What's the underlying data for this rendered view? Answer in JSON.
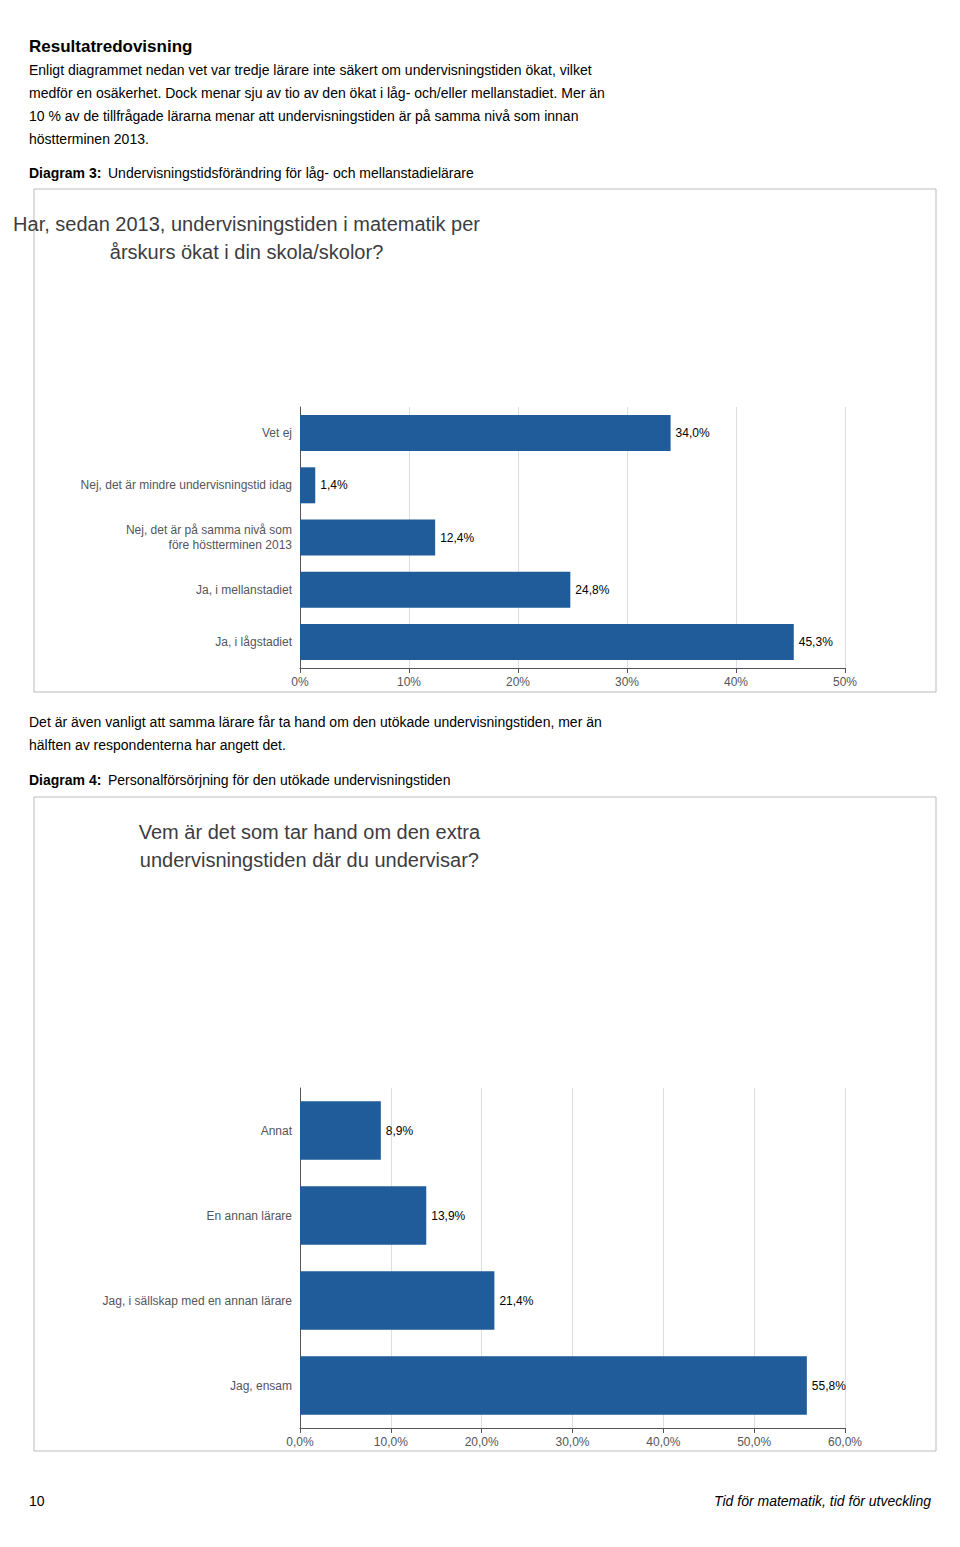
{
  "header": "Resultatredovisning",
  "footer_left": "10",
  "footer_right": "Tid för matematik, tid för utveckling",
  "chart_data": [
    {
      "type": "bar",
      "orientation": "horizontal",
      "intro": [
        "Enligt diagrammet nedan vet var tredje lärare inte säkert om undervisningstiden ökat, vilket",
        "medför en osäkerhet. Dock menar sju av tio av den ökat i låg- och/eller mellanstadiet. Mer än",
        "10 % av de tillfrågade lärarna menar att undervisningstiden är på samma nivå som innan",
        "höstterminen 2013."
      ],
      "label": "Diagram 3:",
      "description": "Undervisningstidsförändring för låg- och mellanstadielärare",
      "title": "Har, sedan 2013, undervisningstiden i matematik per\nårskurs ökat i din skola/skolor?",
      "categories": [
        "Ja, i lågstadiet",
        "Ja, i mellanstadiet",
        "Nej, det är på samma nivå som\nföre höstterminen 2013",
        "Nej, det är mindre undervisningstid idag",
        "Vet ej"
      ],
      "values": [
        45.3,
        24.8,
        12.4,
        1.4,
        34.0
      ],
      "value_labels": [
        "45,3%",
        "24,8%",
        "12,4%",
        "1,4%",
        "34,0%"
      ],
      "data_labels": true,
      "color": "#1f5c99",
      "xlim": [
        0,
        50
      ],
      "xticks": [
        {
          "value": 0,
          "label": "0%"
        },
        {
          "value": 10,
          "label": "10%"
        },
        {
          "value": 20,
          "label": "20%"
        },
        {
          "value": 30,
          "label": "30%"
        },
        {
          "value": 40,
          "label": "40%"
        },
        {
          "value": 50,
          "label": "50%"
        }
      ],
      "grid": true
    },
    {
      "type": "bar",
      "orientation": "horizontal",
      "intro": [
        "Det är även vanligt att samma lärare får ta hand om den utökade undervisningstiden, mer än",
        "hälften av respondenterna har angett det."
      ],
      "label": "Diagram 4:",
      "description": "Personalförsörjning för den utökade undervisningstiden",
      "title": "Vem är det som tar hand om den extra\nundervisningstiden där du undervisar?",
      "categories": [
        "Jag, ensam",
        "Jag, i sällskap med en annan lärare",
        "En annan lärare",
        "Annat"
      ],
      "values": [
        55.8,
        21.4,
        13.9,
        8.9
      ],
      "value_labels": [
        "55,8%",
        "21,4%",
        "13,9%",
        "8,9%"
      ],
      "data_labels": true,
      "color": "#1f5c99",
      "xlim": [
        0,
        60
      ],
      "xticks": [
        {
          "value": 0,
          "label": "0,0%"
        },
        {
          "value": 10,
          "label": "10,0%"
        },
        {
          "value": 20,
          "label": "20,0%"
        },
        {
          "value": 30,
          "label": "30,0%"
        },
        {
          "value": 40,
          "label": "40,0%"
        },
        {
          "value": 50,
          "label": "50,0%"
        },
        {
          "value": 60,
          "label": "60,0%"
        }
      ],
      "grid": true
    }
  ]
}
